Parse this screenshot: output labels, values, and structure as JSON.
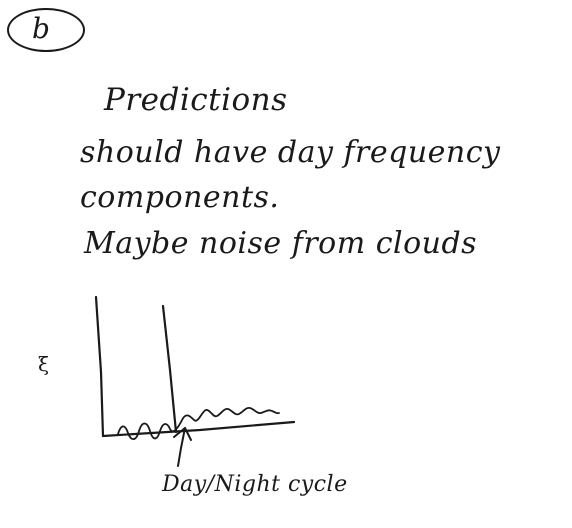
{
  "label": "b",
  "notes": [
    "Predictions",
    "should have day frequency",
    "components.",
    "Maybe noise from clouds"
  ],
  "sketch": {
    "y_axis_label": "ξ",
    "annotation": "Day/Night cycle"
  },
  "colors": {
    "ink": "#1a1a1a",
    "paper": "#ffffff"
  }
}
